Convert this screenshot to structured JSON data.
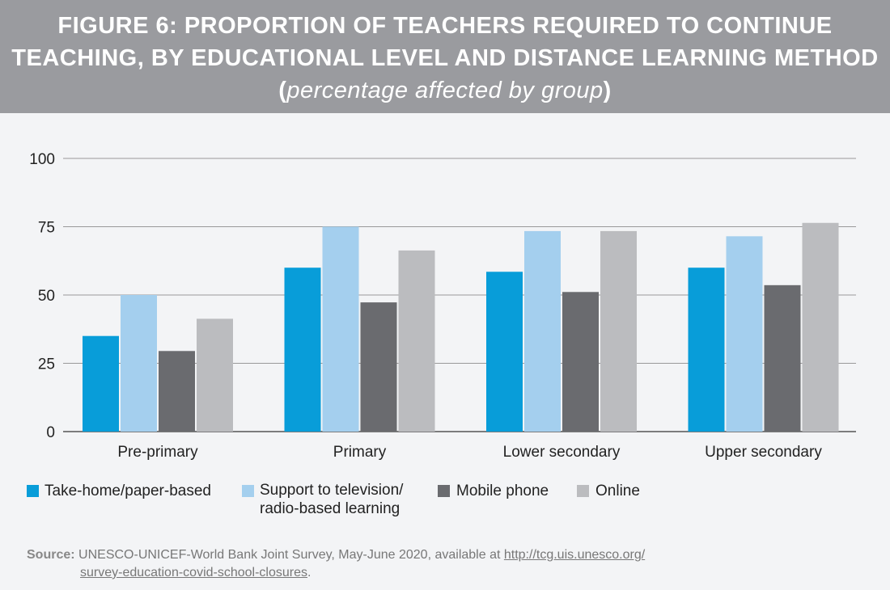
{
  "title": {
    "main": "FIGURE 6: PROPORTION OF TEACHERS REQUIRED TO CONTINUE TEACHING, BY EDUCATIONAL LEVEL AND DISTANCE LEARNING METHOD",
    "sub": "percentage affected by group"
  },
  "colors": {
    "header": "#9a9b9f",
    "take_home": "#089dd9",
    "tv_radio": "#a4cfee",
    "mobile": "#6a6b6f",
    "online": "#bbbcbf"
  },
  "chart_data": {
    "type": "bar",
    "categories": [
      "Pre-primary",
      "Primary",
      "Lower secondary",
      "Upper secondary"
    ],
    "ylim": [
      0,
      100
    ],
    "yticks": [
      0,
      25,
      50,
      75,
      100
    ],
    "grid": true,
    "legend_position": "bottom",
    "series": [
      {
        "name": "Take-home/paper-based",
        "color": "#089dd9",
        "values": [
          35,
          60,
          58.5,
          60
        ]
      },
      {
        "name": "Support to television/ radio-based learning",
        "color": "#a4cfee",
        "values": [
          50,
          75,
          73.4,
          71.5
        ]
      },
      {
        "name": "Mobile phone",
        "color": "#6a6b6f",
        "values": [
          29.5,
          47.3,
          51.1,
          53.6
        ]
      },
      {
        "name": "Online",
        "color": "#bbbcbf",
        "values": [
          41.3,
          66.3,
          73.4,
          76.4
        ]
      }
    ]
  },
  "legend": {
    "items": [
      "Take-home/paper-based",
      "Support to television/",
      "radio-based learning",
      "Mobile phone",
      "Online"
    ]
  },
  "source": {
    "label": "Source:",
    "text": "UNESCO-UNICEF-World Bank Joint Survey, May-June 2020, available at ",
    "link1": "http://tcg.uis.unesco.org/",
    "link2": "survey-education-covid-school-closures",
    "end": "."
  }
}
